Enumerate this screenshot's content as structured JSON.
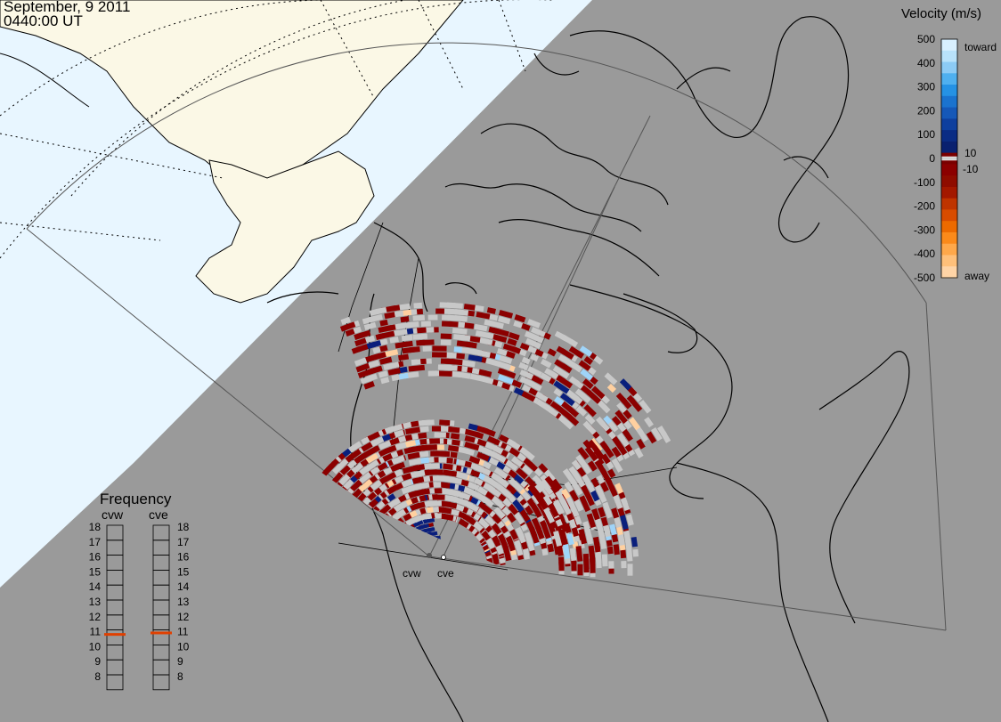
{
  "header": {
    "date": "September, 9 2011",
    "time": "0440:00 UT"
  },
  "velocity_scale": {
    "title": "Velocity (m/s)",
    "ticks": [
      "500",
      "400",
      "300",
      "200",
      "100",
      "0",
      "-100",
      "-200",
      "-300",
      "-400",
      "-500"
    ],
    "label_toward": "toward",
    "label_away": "away",
    "label_pos_threshold": "10",
    "label_neg_threshold": "-10",
    "colors": [
      "#d8f0ff",
      "#9fd4f8",
      "#3fa7ef",
      "#1977d2",
      "#0b45a8",
      "#0a1f7c",
      "#6e0000",
      "#8b0000",
      "#b32000",
      "#e05a00",
      "#ff9a2a",
      "#ffd0a0"
    ]
  },
  "frequency_panel": {
    "title": "Frequency",
    "radar_left": "cvw",
    "radar_right": "cve",
    "levels": [
      "18",
      "17",
      "16",
      "15",
      "14",
      "13",
      "12",
      "11",
      "10",
      "9",
      "8"
    ],
    "cvw_value": 10.7,
    "cve_value": 10.8,
    "marker_color": "#e04000"
  },
  "radar_sites": {
    "cvw_label": "cvw",
    "cve_label": "cve"
  },
  "map_colors": {
    "ocean_day": "#e8f6ff",
    "land_day": "#fbf8e6",
    "night": "#9a9a9a",
    "ground_scatter": "#c8c8c8",
    "coast": "#000000"
  }
}
